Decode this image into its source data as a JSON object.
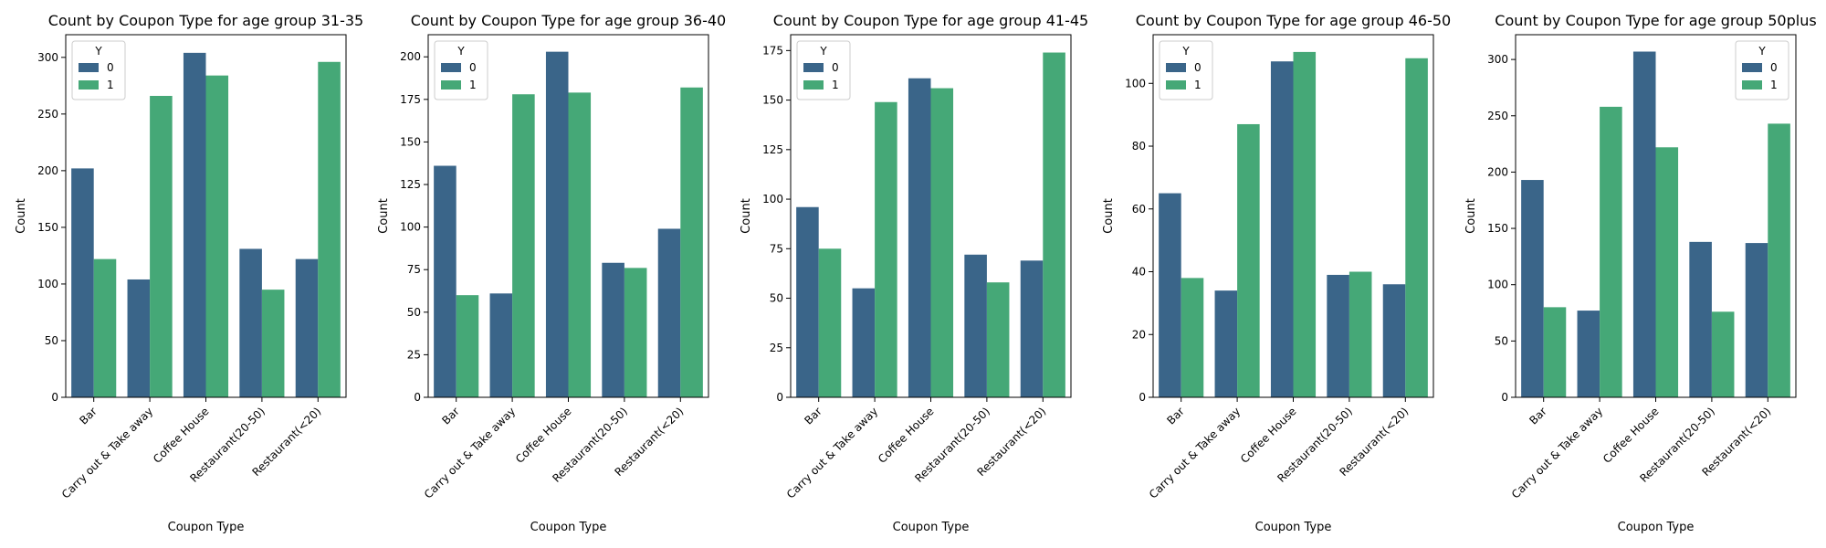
{
  "chart_data": [
    {
      "type": "bar",
      "title": "Count by Coupon Type for age group 31-35",
      "xlabel": "Coupon Type",
      "ylabel": "Count",
      "categories": [
        "Bar",
        "Carry out & Take away",
        "Coffee House",
        "Restaurant(20-50)",
        "Restaurant(<20)"
      ],
      "series": [
        {
          "name": "0",
          "values": [
            202,
            104,
            304,
            131,
            122
          ]
        },
        {
          "name": "1",
          "values": [
            122,
            266,
            284,
            95,
            296
          ]
        }
      ],
      "ylim": [
        0,
        320
      ],
      "yticks": [
        0,
        50,
        100,
        150,
        200,
        250,
        300
      ],
      "legend": {
        "title": "Y",
        "position": "upper-left"
      },
      "grid": false
    },
    {
      "type": "bar",
      "title": "Count by Coupon Type for age group 36-40",
      "xlabel": "Coupon Type",
      "ylabel": "Count",
      "categories": [
        "Bar",
        "Carry out & Take away",
        "Coffee House",
        "Restaurant(20-50)",
        "Restaurant(<20)"
      ],
      "series": [
        {
          "name": "0",
          "values": [
            136,
            61,
            203,
            79,
            99
          ]
        },
        {
          "name": "1",
          "values": [
            60,
            178,
            179,
            76,
            182
          ]
        }
      ],
      "ylim": [
        0,
        213
      ],
      "yticks": [
        0,
        25,
        50,
        75,
        100,
        125,
        150,
        175,
        200
      ],
      "legend": {
        "title": "Y",
        "position": "upper-left"
      },
      "grid": false
    },
    {
      "type": "bar",
      "title": "Count by Coupon Type for age group 41-45",
      "xlabel": "Coupon Type",
      "ylabel": "Count",
      "categories": [
        "Bar",
        "Carry out & Take away",
        "Coffee House",
        "Restaurant(20-50)",
        "Restaurant(<20)"
      ],
      "series": [
        {
          "name": "0",
          "values": [
            96,
            55,
            161,
            72,
            69
          ]
        },
        {
          "name": "1",
          "values": [
            75,
            149,
            156,
            58,
            174
          ]
        }
      ],
      "ylim": [
        0,
        183
      ],
      "yticks": [
        0,
        25,
        50,
        75,
        100,
        125,
        150,
        175
      ],
      "legend": {
        "title": "Y",
        "position": "upper-left"
      },
      "grid": false
    },
    {
      "type": "bar",
      "title": "Count by Coupon Type for age group 46-50",
      "xlabel": "Coupon Type",
      "ylabel": "Count",
      "categories": [
        "Bar",
        "Carry out & Take away",
        "Coffee House",
        "Restaurant(20-50)",
        "Restaurant(<20)"
      ],
      "series": [
        {
          "name": "0",
          "values": [
            65,
            34,
            107,
            39,
            36
          ]
        },
        {
          "name": "1",
          "values": [
            38,
            87,
            110,
            40,
            108
          ]
        }
      ],
      "ylim": [
        0,
        115.5
      ],
      "yticks": [
        0,
        20,
        40,
        60,
        80,
        100
      ],
      "legend": {
        "title": "Y",
        "position": "upper-left"
      },
      "grid": false
    },
    {
      "type": "bar",
      "title": "Count by Coupon Type for age group 50plus",
      "xlabel": "Coupon Type",
      "ylabel": "Count",
      "categories": [
        "Bar",
        "Carry out & Take away",
        "Coffee House",
        "Restaurant(20-50)",
        "Restaurant(<20)"
      ],
      "series": [
        {
          "name": "0",
          "values": [
            193,
            77,
            307,
            138,
            137
          ]
        },
        {
          "name": "1",
          "values": [
            80,
            258,
            222,
            76,
            243
          ]
        }
      ],
      "ylim": [
        0,
        322
      ],
      "yticks": [
        0,
        50,
        100,
        150,
        200,
        250,
        300
      ],
      "legend": {
        "title": "Y",
        "position": "upper-right"
      },
      "grid": false
    }
  ],
  "colors": {
    "series_0": "#3a6589",
    "series_1": "#45a877"
  }
}
